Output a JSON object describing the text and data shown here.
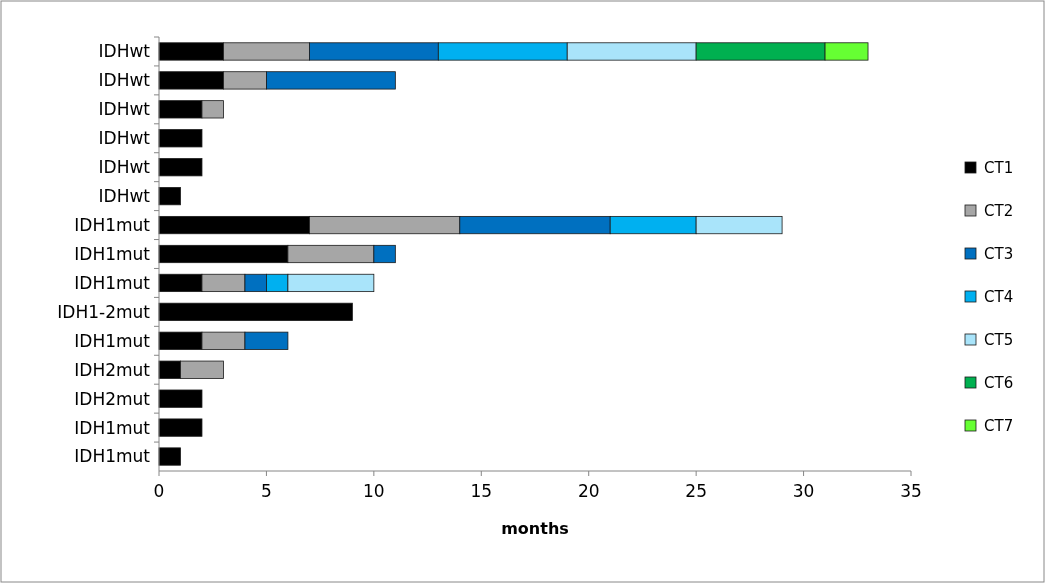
{
  "chart_data": {
    "type": "bar",
    "orientation": "horizontal",
    "stacked": true,
    "xlabel": "months",
    "categories": [
      "IDHwt",
      "IDHwt",
      "IDHwt",
      "IDHwt",
      "IDHwt",
      "IDHwt",
      "IDH1mut",
      "IDH1mut",
      "IDH1mut",
      "IDH1-2mut",
      "IDH1mut",
      "IDH2mut",
      "IDH2mut",
      "IDH1mut",
      "IDH1mut"
    ],
    "xlim": [
      0,
      35
    ],
    "xticks": [
      0,
      5,
      10,
      15,
      20,
      25,
      30,
      35
    ],
    "grid": false,
    "legend": "right",
    "series": [
      {
        "name": "CT1",
        "color": "#000000",
        "values": [
          3,
          3,
          2,
          2,
          2,
          1,
          7,
          6,
          2,
          9,
          2,
          1,
          2,
          2,
          1
        ]
      },
      {
        "name": "CT2",
        "color": "#a6a6a6",
        "values": [
          4,
          2,
          1,
          null,
          null,
          null,
          7,
          4,
          2,
          null,
          2,
          2,
          null,
          null,
          null
        ]
      },
      {
        "name": "CT3",
        "color": "#0070c0",
        "values": [
          6,
          6,
          null,
          null,
          null,
          null,
          7,
          1,
          1,
          null,
          2,
          null,
          null,
          null,
          null
        ]
      },
      {
        "name": "CT4",
        "color": "#00b0f0",
        "values": [
          6,
          null,
          null,
          null,
          null,
          null,
          4,
          null,
          1,
          null,
          null,
          null,
          null,
          null,
          null
        ]
      },
      {
        "name": "CT5",
        "color": "#a9e4fa",
        "values": [
          6,
          null,
          null,
          null,
          null,
          null,
          4,
          null,
          4,
          null,
          null,
          null,
          null,
          null,
          null
        ]
      },
      {
        "name": "CT6",
        "color": "#00b050",
        "values": [
          6,
          null,
          null,
          null,
          null,
          null,
          null,
          null,
          null,
          null,
          null,
          null,
          null,
          null,
          null
        ]
      },
      {
        "name": "CT7",
        "color": "#66ff33",
        "values": [
          2,
          null,
          null,
          null,
          null,
          null,
          null,
          null,
          null,
          null,
          null,
          null,
          null,
          null,
          null
        ]
      }
    ]
  }
}
